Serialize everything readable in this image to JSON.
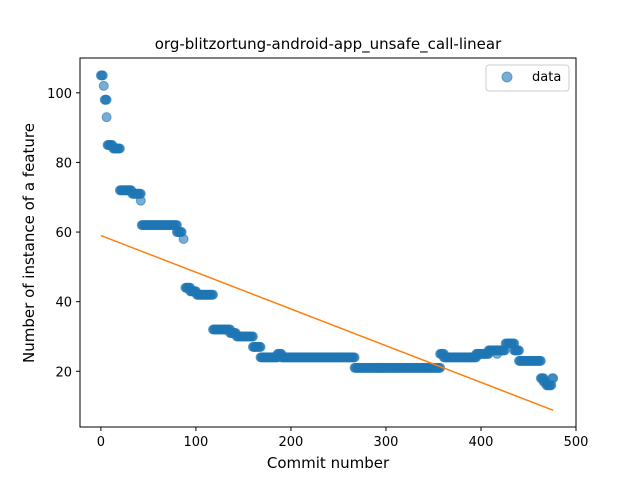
{
  "chart_data": {
    "type": "scatter",
    "title": "org-blitzortung-android-app_unsafe_call-linear",
    "xlabel": "Commit number",
    "ylabel": "Number of instance of a feature",
    "xlim": [
      -22,
      500
    ],
    "ylim": [
      4,
      110
    ],
    "xticks": [
      0,
      100,
      200,
      300,
      400,
      500
    ],
    "yticks": [
      20,
      40,
      60,
      80,
      100
    ],
    "grid": false,
    "legend": {
      "placement": "top-right",
      "entries": [
        "data"
      ]
    },
    "colors": {
      "data": "#1f77b4",
      "fit": "#ff7f0e"
    },
    "series": [
      {
        "name": "data",
        "kind": "scatter",
        "segments": [
          {
            "x": [
              0,
              2
            ],
            "y": 105
          },
          {
            "x": [
              3,
              3
            ],
            "y": 102
          },
          {
            "x": [
              4,
              6
            ],
            "y": 98
          },
          {
            "x": [
              6,
              6
            ],
            "y": 93
          },
          {
            "x": [
              7,
              12
            ],
            "y": 85
          },
          {
            "x": [
              13,
              20
            ],
            "y": 84
          },
          {
            "x": [
              20,
              32
            ],
            "y": 72
          },
          {
            "x": [
              33,
              42
            ],
            "y": 71
          },
          {
            "x": [
              42,
              42
            ],
            "y": 69
          },
          {
            "x": [
              43,
              80
            ],
            "y": 62
          },
          {
            "x": [
              80,
              85
            ],
            "y": 60
          },
          {
            "x": [
              87,
              87
            ],
            "y": 58
          },
          {
            "x": [
              89,
              94
            ],
            "y": 44
          },
          {
            "x": [
              94,
              100
            ],
            "y": 43
          },
          {
            "x": [
              101,
              118
            ],
            "y": 42
          },
          {
            "x": [
              118,
              136
            ],
            "y": 32
          },
          {
            "x": [
              136,
              142
            ],
            "y": 31
          },
          {
            "x": [
              143,
              160
            ],
            "y": 30
          },
          {
            "x": [
              160,
              168
            ],
            "y": 27
          },
          {
            "x": [
              168,
              186
            ],
            "y": 24
          },
          {
            "x": [
              186,
              190
            ],
            "y": 25
          },
          {
            "x": [
              190,
              267
            ],
            "y": 24
          },
          {
            "x": [
              267,
              357
            ],
            "y": 21
          },
          {
            "x": [
              357,
              361
            ],
            "y": 25
          },
          {
            "x": [
              361,
              395
            ],
            "y": 24
          },
          {
            "x": [
              395,
              408
            ],
            "y": 25
          },
          {
            "x": [
              408,
              425
            ],
            "y": 26
          },
          {
            "x": [
              417,
              417
            ],
            "y": 25
          },
          {
            "x": [
              426,
              435
            ],
            "y": 28
          },
          {
            "x": [
              435,
              440
            ],
            "y": 26
          },
          {
            "x": [
              440,
              463
            ],
            "y": 23
          },
          {
            "x": [
              463,
              466
            ],
            "y": 18
          },
          {
            "x": [
              466,
              468
            ],
            "y": 17
          },
          {
            "x": [
              469,
              474
            ],
            "y": 16
          },
          {
            "x": [
              475,
              476
            ],
            "y": 18
          }
        ]
      },
      {
        "name": "",
        "kind": "line",
        "x": [
          0,
          476
        ],
        "y": [
          59,
          8.8
        ]
      }
    ]
  }
}
